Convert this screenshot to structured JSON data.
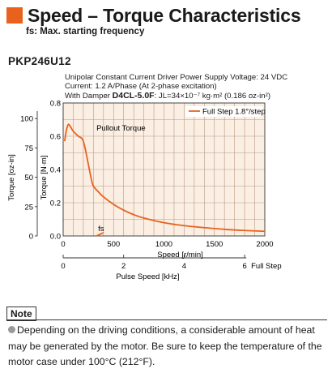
{
  "header": {
    "title": "Speed – Torque Characteristics",
    "subtitle": "fs: Max. starting frequency",
    "model": "PKP246U12"
  },
  "conditions": {
    "line1": "Unipolar Constant Current Driver  Power Supply Voltage: 24 VDC",
    "line2": "Current: 1.2 A/Phase (At 2-phase excitation)",
    "line3_prefix": "With Damper ",
    "line3_bold": "D4CL-5.0F",
    "line3_suffix": ": JL=34×10⁻⁷ kg·m² (0.186 oz-in²)"
  },
  "chart_data": {
    "type": "line",
    "title": "",
    "xlabel": "Speed [r/min]",
    "xlim": [
      0,
      2000
    ],
    "xticks": [
      0,
      500,
      1000,
      1500,
      2000
    ],
    "secondary_x": {
      "label": "Pulse Speed [kHz]",
      "ticks": [
        0,
        2,
        4,
        6
      ],
      "end_label": "Full Step",
      "kHz_per_rpm": 0.003333
    },
    "ylabel_left": "Torque [oz-in]",
    "yticks_left": [
      0,
      25,
      50,
      75,
      100
    ],
    "ylabel_right": "Torque [N·m]",
    "ylim": [
      0,
      0.8
    ],
    "yticks": [
      0,
      0.2,
      0.4,
      0.6,
      0.8
    ],
    "series": [
      {
        "name": "Full Step 1.8°/step",
        "color": "#e8621e",
        "x": [
          15,
          30,
          50,
          70,
          100,
          150,
          200,
          250,
          280,
          300,
          350,
          400,
          500,
          600,
          700,
          800,
          1000,
          1200,
          1400,
          1600,
          1800,
          2000
        ],
        "y": [
          0.57,
          0.63,
          0.67,
          0.66,
          0.63,
          0.6,
          0.57,
          0.43,
          0.34,
          0.3,
          0.265,
          0.235,
          0.19,
          0.155,
          0.128,
          0.108,
          0.08,
          0.062,
          0.05,
          0.04,
          0.033,
          0.028
        ]
      }
    ],
    "annotations": {
      "pullout": "Pullout Torque",
      "fs": "fs"
    },
    "fs_segment": {
      "x": [
        330,
        400
      ],
      "y": [
        0.0,
        0.02
      ]
    }
  },
  "note": {
    "label": "Note",
    "text": "Depending on the driving conditions, a considerable amount of heat may be generated by the motor. Be sure to keep the temperature of the motor case under 100°C (212°F)."
  }
}
